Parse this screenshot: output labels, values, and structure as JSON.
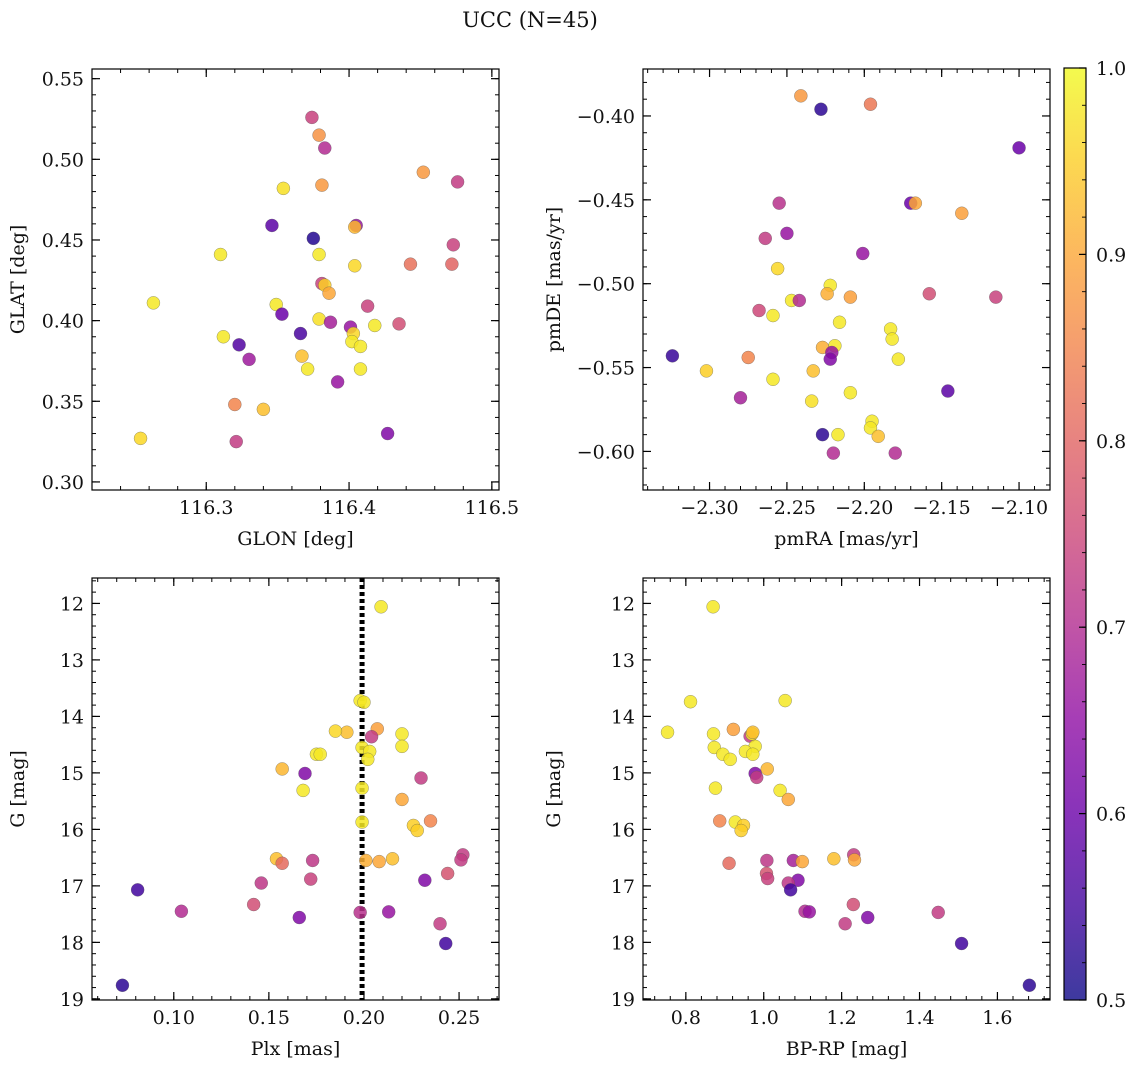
{
  "figure": {
    "title": "UCC (N=45)",
    "colorbar": {
      "colormap": "plasma",
      "range": [
        0.5,
        1.0
      ],
      "ticks": [
        "0.5",
        "0.6",
        "0.7",
        "0.8",
        "0.9",
        "1.0"
      ]
    }
  },
  "chart_data": [
    {
      "type": "scatter",
      "xlabel": "GLON [deg]",
      "ylabel": "GLAT [deg]",
      "xlim": [
        116.22,
        116.505
      ],
      "ylim": [
        0.295,
        0.556
      ],
      "xticks": [
        116.3,
        116.4,
        116.5
      ],
      "xtick_labels": [
        "116.3",
        "116.4",
        "116.5"
      ],
      "yticks": [
        0.3,
        0.35,
        0.4,
        0.45,
        0.5,
        0.55
      ],
      "ytick_labels": [
        "0.30",
        "0.35",
        "0.40",
        "0.45",
        "0.50",
        "0.55"
      ],
      "invert_y": false,
      "points": [
        {
          "x": 116.374,
          "y": 0.526,
          "c": 0.74
        },
        {
          "x": 116.379,
          "y": 0.515,
          "c": 0.87
        },
        {
          "x": 116.383,
          "y": 0.507,
          "c": 0.7
        },
        {
          "x": 116.452,
          "y": 0.492,
          "c": 0.88
        },
        {
          "x": 116.476,
          "y": 0.486,
          "c": 0.73
        },
        {
          "x": 116.354,
          "y": 0.482,
          "c": 0.97
        },
        {
          "x": 116.381,
          "y": 0.484,
          "c": 0.88
        },
        {
          "x": 116.346,
          "y": 0.459,
          "c": 0.58
        },
        {
          "x": 116.405,
          "y": 0.459,
          "c": 0.66
        },
        {
          "x": 116.404,
          "y": 0.458,
          "c": 0.92
        },
        {
          "x": 116.375,
          "y": 0.451,
          "c": 0.52
        },
        {
          "x": 116.473,
          "y": 0.447,
          "c": 0.74
        },
        {
          "x": 116.31,
          "y": 0.441,
          "c": 0.98
        },
        {
          "x": 116.379,
          "y": 0.441,
          "c": 0.98
        },
        {
          "x": 116.443,
          "y": 0.435,
          "c": 0.82
        },
        {
          "x": 116.472,
          "y": 0.435,
          "c": 0.8
        },
        {
          "x": 116.404,
          "y": 0.434,
          "c": 0.96
        },
        {
          "x": 116.381,
          "y": 0.423,
          "c": 0.74
        },
        {
          "x": 116.383,
          "y": 0.422,
          "c": 0.95
        },
        {
          "x": 116.386,
          "y": 0.417,
          "c": 0.9
        },
        {
          "x": 116.263,
          "y": 0.411,
          "c": 0.98
        },
        {
          "x": 116.349,
          "y": 0.41,
          "c": 0.98
        },
        {
          "x": 116.413,
          "y": 0.409,
          "c": 0.74
        },
        {
          "x": 116.353,
          "y": 0.404,
          "c": 0.6
        },
        {
          "x": 116.379,
          "y": 0.401,
          "c": 0.97
        },
        {
          "x": 116.387,
          "y": 0.399,
          "c": 0.68
        },
        {
          "x": 116.435,
          "y": 0.398,
          "c": 0.76
        },
        {
          "x": 116.418,
          "y": 0.397,
          "c": 0.98
        },
        {
          "x": 116.401,
          "y": 0.396,
          "c": 0.66
        },
        {
          "x": 116.403,
          "y": 0.392,
          "c": 0.96
        },
        {
          "x": 116.366,
          "y": 0.392,
          "c": 0.56
        },
        {
          "x": 116.312,
          "y": 0.39,
          "c": 0.98
        },
        {
          "x": 116.402,
          "y": 0.387,
          "c": 0.98
        },
        {
          "x": 116.323,
          "y": 0.385,
          "c": 0.57
        },
        {
          "x": 116.408,
          "y": 0.384,
          "c": 0.98
        },
        {
          "x": 116.367,
          "y": 0.378,
          "c": 0.93
        },
        {
          "x": 116.33,
          "y": 0.376,
          "c": 0.67
        },
        {
          "x": 116.371,
          "y": 0.37,
          "c": 0.98
        },
        {
          "x": 116.408,
          "y": 0.37,
          "c": 0.98
        },
        {
          "x": 116.392,
          "y": 0.362,
          "c": 0.66
        },
        {
          "x": 116.32,
          "y": 0.348,
          "c": 0.85
        },
        {
          "x": 116.34,
          "y": 0.345,
          "c": 0.93
        },
        {
          "x": 116.427,
          "y": 0.33,
          "c": 0.63
        },
        {
          "x": 116.254,
          "y": 0.327,
          "c": 0.96
        },
        {
          "x": 116.321,
          "y": 0.325,
          "c": 0.73
        }
      ]
    },
    {
      "type": "scatter",
      "xlabel": "pmRA [mas/yr]",
      "ylabel": "pmDE [mas/yr]",
      "xlim": [
        -2.343,
        -2.08
      ],
      "ylim": [
        -0.623,
        -0.372
      ],
      "xticks": [
        -2.3,
        -2.25,
        -2.2,
        -2.15,
        -2.1
      ],
      "xtick_labels": [
        "−2.30",
        "−2.25",
        "−2.20",
        "−2.15",
        "−2.10"
      ],
      "yticks": [
        -0.6,
        -0.55,
        -0.5,
        -0.45,
        -0.4
      ],
      "ytick_labels": [
        "−0.60",
        "−0.55",
        "−0.50",
        "−0.45",
        "−0.40"
      ],
      "invert_y": false,
      "points": [
        {
          "x": -2.241,
          "y": -0.388,
          "c": 0.88
        },
        {
          "x": -2.196,
          "y": -0.393,
          "c": 0.83
        },
        {
          "x": -2.228,
          "y": -0.396,
          "c": 0.53
        },
        {
          "x": -2.1,
          "y": -0.419,
          "c": 0.6
        },
        {
          "x": -2.17,
          "y": -0.452,
          "c": 0.6
        },
        {
          "x": -2.167,
          "y": -0.452,
          "c": 0.9
        },
        {
          "x": -2.137,
          "y": -0.458,
          "c": 0.89
        },
        {
          "x": -2.255,
          "y": -0.452,
          "c": 0.71
        },
        {
          "x": -2.25,
          "y": -0.47,
          "c": 0.66
        },
        {
          "x": -2.264,
          "y": -0.473,
          "c": 0.73
        },
        {
          "x": -2.201,
          "y": -0.482,
          "c": 0.66
        },
        {
          "x": -2.256,
          "y": -0.491,
          "c": 0.96
        },
        {
          "x": -2.222,
          "y": -0.501,
          "c": 0.98
        },
        {
          "x": -2.224,
          "y": -0.506,
          "c": 0.91
        },
        {
          "x": -2.209,
          "y": -0.508,
          "c": 0.89
        },
        {
          "x": -2.158,
          "y": -0.506,
          "c": 0.76
        },
        {
          "x": -2.115,
          "y": -0.508,
          "c": 0.74
        },
        {
          "x": -2.247,
          "y": -0.51,
          "c": 0.98
        },
        {
          "x": -2.242,
          "y": -0.51,
          "c": 0.7
        },
        {
          "x": -2.268,
          "y": -0.516,
          "c": 0.75
        },
        {
          "x": -2.259,
          "y": -0.519,
          "c": 0.98
        },
        {
          "x": -2.216,
          "y": -0.523,
          "c": 0.98
        },
        {
          "x": -2.183,
          "y": -0.527,
          "c": 0.98
        },
        {
          "x": -2.182,
          "y": -0.533,
          "c": 0.98
        },
        {
          "x": -2.219,
          "y": -0.537,
          "c": 0.98
        },
        {
          "x": -2.227,
          "y": -0.538,
          "c": 0.91
        },
        {
          "x": -2.221,
          "y": -0.541,
          "c": 0.66
        },
        {
          "x": -2.222,
          "y": -0.545,
          "c": 0.63
        },
        {
          "x": -2.178,
          "y": -0.545,
          "c": 0.98
        },
        {
          "x": -2.275,
          "y": -0.544,
          "c": 0.85
        },
        {
          "x": -2.324,
          "y": -0.543,
          "c": 0.54
        },
        {
          "x": -2.233,
          "y": -0.552,
          "c": 0.93
        },
        {
          "x": -2.302,
          "y": -0.552,
          "c": 0.95
        },
        {
          "x": -2.259,
          "y": -0.557,
          "c": 0.98
        },
        {
          "x": -2.209,
          "y": -0.565,
          "c": 0.98
        },
        {
          "x": -2.146,
          "y": -0.564,
          "c": 0.58
        },
        {
          "x": -2.28,
          "y": -0.568,
          "c": 0.68
        },
        {
          "x": -2.234,
          "y": -0.57,
          "c": 0.97
        },
        {
          "x": -2.195,
          "y": -0.582,
          "c": 0.98
        },
        {
          "x": -2.196,
          "y": -0.586,
          "c": 0.98
        },
        {
          "x": -2.217,
          "y": -0.59,
          "c": 0.98
        },
        {
          "x": -2.227,
          "y": -0.59,
          "c": 0.53
        },
        {
          "x": -2.191,
          "y": -0.591,
          "c": 0.93
        },
        {
          "x": -2.22,
          "y": -0.601,
          "c": 0.7
        },
        {
          "x": -2.18,
          "y": -0.601,
          "c": 0.7
        }
      ]
    },
    {
      "type": "scatter",
      "xlabel": "Plx [mas]",
      "ylabel": "G [mag]",
      "xlim": [
        0.057,
        0.271
      ],
      "ylim": [
        11.55,
        19.02
      ],
      "xticks": [
        0.1,
        0.15,
        0.2,
        0.25
      ],
      "xtick_labels": [
        "0.10",
        "0.15",
        "0.20",
        "0.25"
      ],
      "yticks": [
        12,
        13,
        14,
        15,
        16,
        17,
        18,
        19
      ],
      "ytick_labels": [
        "12",
        "13",
        "14",
        "15",
        "16",
        "17",
        "18",
        "19"
      ],
      "invert_y": true,
      "vline": 0.199,
      "points": [
        {
          "x": 0.209,
          "y": 12.06,
          "c": 0.98
        },
        {
          "x": 0.198,
          "y": 13.72,
          "c": 0.98
        },
        {
          "x": 0.2,
          "y": 13.75,
          "c": 0.98
        },
        {
          "x": 0.191,
          "y": 14.28,
          "c": 0.93
        },
        {
          "x": 0.207,
          "y": 14.22,
          "c": 0.89
        },
        {
          "x": 0.185,
          "y": 14.26,
          "c": 0.96
        },
        {
          "x": 0.22,
          "y": 14.31,
          "c": 0.98
        },
        {
          "x": 0.204,
          "y": 14.36,
          "c": 0.73
        },
        {
          "x": 0.199,
          "y": 14.55,
          "c": 0.98
        },
        {
          "x": 0.203,
          "y": 14.62,
          "c": 0.98
        },
        {
          "x": 0.22,
          "y": 14.53,
          "c": 0.98
        },
        {
          "x": 0.175,
          "y": 14.67,
          "c": 0.98
        },
        {
          "x": 0.177,
          "y": 14.67,
          "c": 0.98
        },
        {
          "x": 0.202,
          "y": 14.76,
          "c": 0.98
        },
        {
          "x": 0.157,
          "y": 14.93,
          "c": 0.92
        },
        {
          "x": 0.169,
          "y": 15.01,
          "c": 0.63
        },
        {
          "x": 0.23,
          "y": 15.09,
          "c": 0.73
        },
        {
          "x": 0.199,
          "y": 15.27,
          "c": 0.98
        },
        {
          "x": 0.168,
          "y": 15.31,
          "c": 0.98
        },
        {
          "x": 0.22,
          "y": 15.47,
          "c": 0.9
        },
        {
          "x": 0.235,
          "y": 15.85,
          "c": 0.85
        },
        {
          "x": 0.199,
          "y": 15.87,
          "c": 0.98
        },
        {
          "x": 0.226,
          "y": 15.93,
          "c": 0.95
        },
        {
          "x": 0.228,
          "y": 16.02,
          "c": 0.95
        },
        {
          "x": 0.154,
          "y": 16.52,
          "c": 0.93
        },
        {
          "x": 0.157,
          "y": 16.6,
          "c": 0.81
        },
        {
          "x": 0.173,
          "y": 16.55,
          "c": 0.72
        },
        {
          "x": 0.201,
          "y": 16.55,
          "c": 0.91
        },
        {
          "x": 0.208,
          "y": 16.57,
          "c": 0.9
        },
        {
          "x": 0.252,
          "y": 16.45,
          "c": 0.73
        },
        {
          "x": 0.251,
          "y": 16.54,
          "c": 0.73
        },
        {
          "x": 0.244,
          "y": 16.78,
          "c": 0.77
        },
        {
          "x": 0.232,
          "y": 16.9,
          "c": 0.63
        },
        {
          "x": 0.172,
          "y": 16.88,
          "c": 0.74
        },
        {
          "x": 0.146,
          "y": 16.95,
          "c": 0.72
        },
        {
          "x": 0.081,
          "y": 17.07,
          "c": 0.55
        },
        {
          "x": 0.142,
          "y": 17.33,
          "c": 0.76
        },
        {
          "x": 0.104,
          "y": 17.45,
          "c": 0.7
        },
        {
          "x": 0.198,
          "y": 17.47,
          "c": 0.71
        },
        {
          "x": 0.213,
          "y": 17.46,
          "c": 0.66
        },
        {
          "x": 0.166,
          "y": 17.56,
          "c": 0.63
        },
        {
          "x": 0.24,
          "y": 17.67,
          "c": 0.73
        },
        {
          "x": 0.243,
          "y": 18.02,
          "c": 0.55
        },
        {
          "x": 0.073,
          "y": 18.76,
          "c": 0.53
        },
        {
          "x": 0.215,
          "y": 16.52,
          "c": 0.93
        }
      ]
    },
    {
      "type": "scatter",
      "xlabel": "BP-RP [mag]",
      "ylabel": "G [mag]",
      "xlim": [
        0.69,
        1.735
      ],
      "ylim": [
        11.55,
        19.02
      ],
      "xticks": [
        0.8,
        1.0,
        1.2,
        1.4,
        1.6
      ],
      "xtick_labels": [
        "0.8",
        "1.0",
        "1.2",
        "1.4",
        "1.6"
      ],
      "yticks": [
        12,
        13,
        14,
        15,
        16,
        17,
        18,
        19
      ],
      "ytick_labels": [
        "12",
        "13",
        "14",
        "15",
        "16",
        "17",
        "18",
        "19"
      ],
      "invert_y": true,
      "points": [
        {
          "x": 0.87,
          "y": 12.06,
          "c": 0.98
        },
        {
          "x": 0.812,
          "y": 13.74,
          "c": 0.98
        },
        {
          "x": 1.055,
          "y": 13.72,
          "c": 0.98
        },
        {
          "x": 0.753,
          "y": 14.28,
          "c": 0.98
        },
        {
          "x": 0.922,
          "y": 14.23,
          "c": 0.89
        },
        {
          "x": 0.871,
          "y": 14.31,
          "c": 0.98
        },
        {
          "x": 0.965,
          "y": 14.35,
          "c": 0.73
        },
        {
          "x": 0.97,
          "y": 14.31,
          "c": 0.98
        },
        {
          "x": 0.873,
          "y": 14.55,
          "c": 0.98
        },
        {
          "x": 0.978,
          "y": 14.53,
          "c": 0.98
        },
        {
          "x": 0.895,
          "y": 14.67,
          "c": 0.98
        },
        {
          "x": 0.953,
          "y": 14.62,
          "c": 0.98
        },
        {
          "x": 0.972,
          "y": 14.67,
          "c": 0.98
        },
        {
          "x": 0.914,
          "y": 14.76,
          "c": 0.98
        },
        {
          "x": 1.009,
          "y": 14.93,
          "c": 0.92
        },
        {
          "x": 0.978,
          "y": 15.01,
          "c": 0.63
        },
        {
          "x": 0.982,
          "y": 15.08,
          "c": 0.73
        },
        {
          "x": 0.876,
          "y": 15.27,
          "c": 0.98
        },
        {
          "x": 1.042,
          "y": 15.31,
          "c": 0.98
        },
        {
          "x": 1.063,
          "y": 15.47,
          "c": 0.9
        },
        {
          "x": 0.887,
          "y": 15.85,
          "c": 0.85
        },
        {
          "x": 0.927,
          "y": 15.87,
          "c": 0.98
        },
        {
          "x": 0.948,
          "y": 15.93,
          "c": 0.95
        },
        {
          "x": 0.942,
          "y": 16.02,
          "c": 0.95
        },
        {
          "x": 0.911,
          "y": 16.6,
          "c": 0.81
        },
        {
          "x": 1.008,
          "y": 16.55,
          "c": 0.72
        },
        {
          "x": 1.076,
          "y": 16.55,
          "c": 0.68
        },
        {
          "x": 1.099,
          "y": 16.57,
          "c": 0.9
        },
        {
          "x": 1.18,
          "y": 16.52,
          "c": 0.93
        },
        {
          "x": 1.231,
          "y": 16.45,
          "c": 0.73
        },
        {
          "x": 1.233,
          "y": 16.54,
          "c": 0.9
        },
        {
          "x": 1.007,
          "y": 16.78,
          "c": 0.77
        },
        {
          "x": 1.01,
          "y": 16.87,
          "c": 0.74
        },
        {
          "x": 1.088,
          "y": 16.9,
          "c": 0.63
        },
        {
          "x": 1.063,
          "y": 16.95,
          "c": 0.72
        },
        {
          "x": 1.069,
          "y": 17.07,
          "c": 0.55
        },
        {
          "x": 1.23,
          "y": 17.33,
          "c": 0.76
        },
        {
          "x": 1.106,
          "y": 17.45,
          "c": 0.7
        },
        {
          "x": 1.117,
          "y": 17.46,
          "c": 0.66
        },
        {
          "x": 1.448,
          "y": 17.47,
          "c": 0.73
        },
        {
          "x": 1.267,
          "y": 17.56,
          "c": 0.63
        },
        {
          "x": 1.209,
          "y": 17.67,
          "c": 0.73
        },
        {
          "x": 1.508,
          "y": 18.02,
          "c": 0.55
        },
        {
          "x": 1.682,
          "y": 18.76,
          "c": 0.53
        },
        {
          "x": 0.972,
          "y": 14.28,
          "c": 0.93
        }
      ]
    }
  ]
}
